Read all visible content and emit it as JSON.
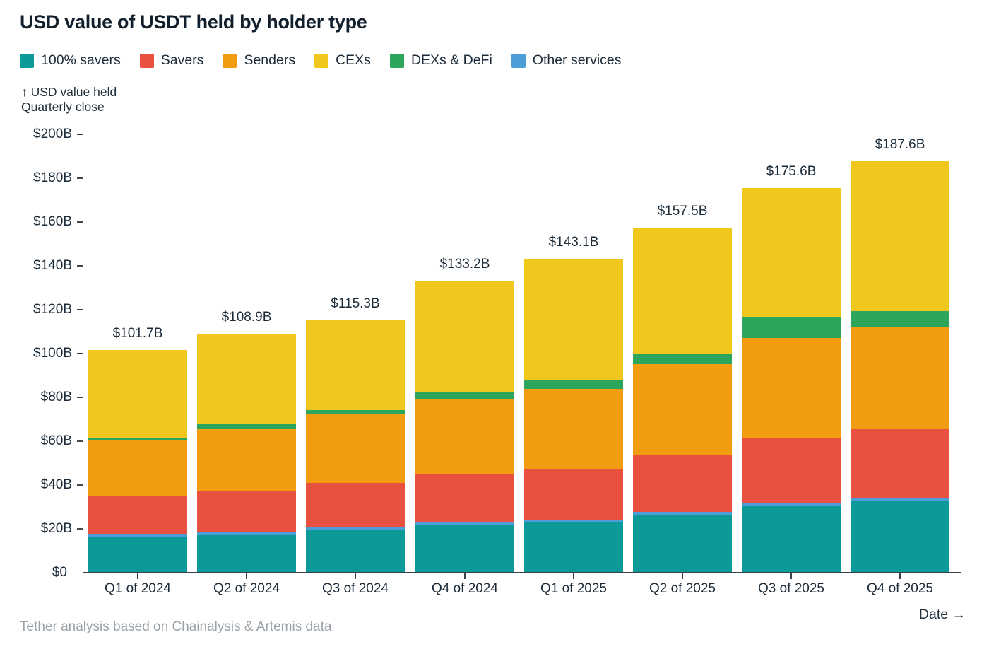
{
  "title": "USD value of USDT held by holder type",
  "y_axis_annotation": {
    "line1": "↑ USD value held",
    "line2": "Quarterly close"
  },
  "x_axis_title": "Date →",
  "footer_note": "Tether analysis based on Chainalysis & Artemis data",
  "legend": [
    {
      "label": "100% savers",
      "color": "#0b9a97"
    },
    {
      "label": "Savers",
      "color": "#e85140"
    },
    {
      "label": "Senders",
      "color": "#f19c11"
    },
    {
      "label": "CEXs",
      "color": "#efc71d"
    },
    {
      "label": "DEXs & DeFi",
      "color": "#2ba65c"
    },
    {
      "label": "Other services",
      "color": "#4d9dd8"
    }
  ],
  "chart_data": {
    "type": "bar",
    "stacked": true,
    "title": "USD value of USDT held by holder type",
    "xlabel": "Date",
    "ylabel": "USD value held, quarterly close ($B)",
    "ylim": [
      0,
      200
    ],
    "grid": false,
    "legend_position": "top",
    "y_ticks": [
      {
        "value": 0,
        "label": "$0"
      },
      {
        "value": 20,
        "label": "$20B"
      },
      {
        "value": 40,
        "label": "$40B"
      },
      {
        "value": 60,
        "label": "$60B"
      },
      {
        "value": 80,
        "label": "$80B"
      },
      {
        "value": 100,
        "label": "$100B"
      },
      {
        "value": 120,
        "label": "$120B"
      },
      {
        "value": 140,
        "label": "$140B"
      },
      {
        "value": 160,
        "label": "$160B"
      },
      {
        "value": 180,
        "label": "$180B"
      },
      {
        "value": 200,
        "label": "$200B"
      }
    ],
    "categories": [
      "Q1 of 2024",
      "Q2 of 2024",
      "Q3 of 2024",
      "Q4 of 2024",
      "Q1 of 2025",
      "Q2 of 2025",
      "Q3 of 2025",
      "Q4 of 2025"
    ],
    "totals": [
      {
        "value": 101.7,
        "label": "$101.7B"
      },
      {
        "value": 108.9,
        "label": "$108.9B"
      },
      {
        "value": 115.3,
        "label": "$115.3B"
      },
      {
        "value": 133.2,
        "label": "$133.2B"
      },
      {
        "value": 143.1,
        "label": "$143.1B"
      },
      {
        "value": 157.5,
        "label": "$157.5B"
      },
      {
        "value": 175.6,
        "label": "$175.6B"
      },
      {
        "value": 187.6,
        "label": "$187.6B"
      }
    ],
    "stack_order": "bottom to top",
    "series": [
      {
        "name": "100% savers",
        "color": "#0b9a97",
        "values": [
          16.1,
          17.1,
          19.5,
          22.0,
          23.0,
          26.5,
          30.5,
          32.5
        ]
      },
      {
        "name": "Other services",
        "color": "#4d9dd8",
        "values": [
          1.6,
          1.6,
          1.3,
          1.3,
          1.3,
          1.3,
          1.3,
          1.4
        ]
      },
      {
        "name": "Savers",
        "color": "#e85140",
        "values": [
          17.1,
          18.4,
          20.2,
          21.9,
          23.1,
          25.7,
          29.7,
          31.6
        ]
      },
      {
        "name": "Senders",
        "color": "#f19c11",
        "values": [
          25.5,
          28.4,
          31.6,
          34.3,
          36.4,
          41.7,
          45.5,
          46.5
        ]
      },
      {
        "name": "DEXs & DeFi",
        "color": "#2ba65c",
        "values": [
          1.3,
          2.2,
          1.6,
          2.8,
          3.9,
          4.8,
          9.5,
          7.4
        ]
      },
      {
        "name": "CEXs",
        "color": "#efc71d",
        "values": [
          40.1,
          41.2,
          41.1,
          50.9,
          55.4,
          57.5,
          59.1,
          68.2
        ]
      }
    ]
  }
}
